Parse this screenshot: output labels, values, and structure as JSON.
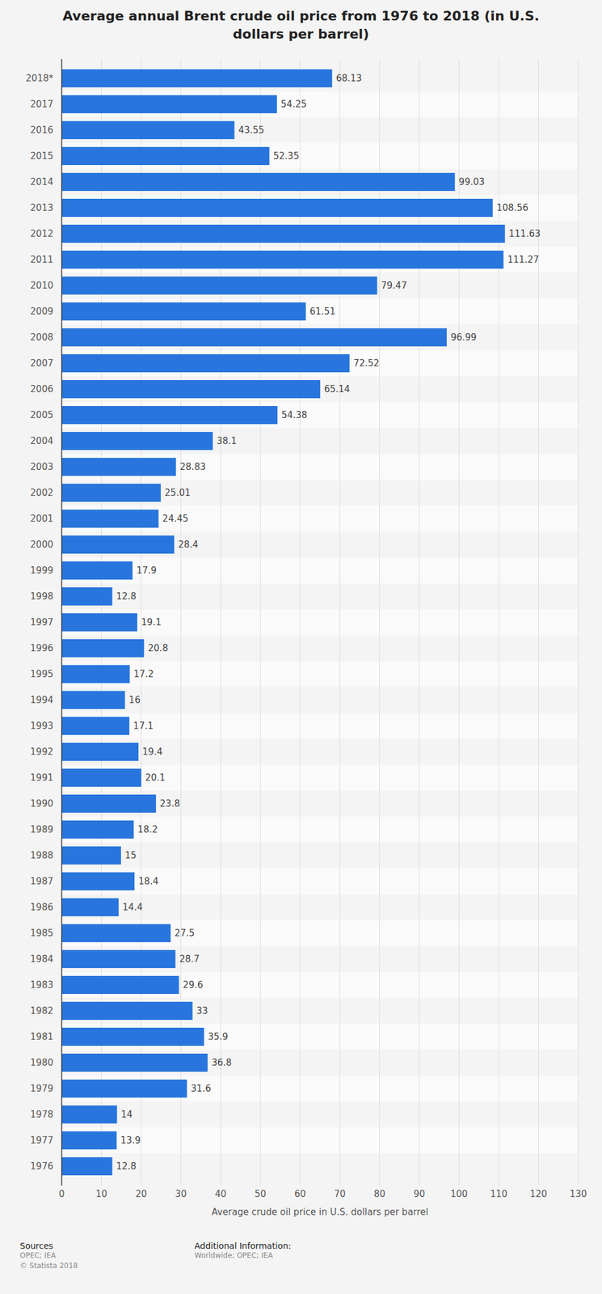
{
  "chart_data": {
    "type": "bar",
    "orientation": "horizontal",
    "title": "Average annual Brent crude oil price from 1976 to 2018 (in U.S. dollars per barrel)",
    "xlabel": "Average crude oil price in U.S. dollars per barrel",
    "categories": [
      "2018*",
      "2017",
      "2016",
      "2015",
      "2014",
      "2013",
      "2012",
      "2011",
      "2010",
      "2009",
      "2008",
      "2007",
      "2006",
      "2005",
      "2004",
      "2003",
      "2002",
      "2001",
      "2000",
      "1999",
      "1998",
      "1997",
      "1996",
      "1995",
      "1994",
      "1993",
      "1992",
      "1991",
      "1990",
      "1989",
      "1988",
      "1987",
      "1986",
      "1985",
      "1984",
      "1983",
      "1982",
      "1981",
      "1980",
      "1979",
      "1978",
      "1977",
      "1976"
    ],
    "values": [
      68.13,
      54.25,
      43.55,
      52.35,
      99.03,
      108.56,
      111.63,
      111.27,
      79.47,
      61.51,
      96.99,
      72.52,
      65.14,
      54.38,
      38.1,
      28.83,
      25.01,
      24.45,
      28.4,
      17.9,
      12.8,
      19.1,
      20.8,
      17.2,
      16,
      17.1,
      19.4,
      20.1,
      23.8,
      18.2,
      15,
      18.4,
      14.4,
      27.5,
      28.7,
      29.6,
      33,
      35.9,
      36.8,
      31.6,
      14,
      13.9,
      12.8
    ],
    "color": "#2876dd",
    "xlim": [
      0,
      130
    ],
    "xticks": [
      0,
      10,
      20,
      30,
      40,
      50,
      60,
      70,
      80,
      90,
      100,
      110,
      120,
      130
    ],
    "grid": true,
    "data_labels": true,
    "footer": {
      "sources_heading": "Sources",
      "sources": "OPEC; IEA",
      "copyright": "© Statista 2018",
      "info_heading": "Additional Information:",
      "info": "Worldwide; OPEC; IEA"
    }
  }
}
